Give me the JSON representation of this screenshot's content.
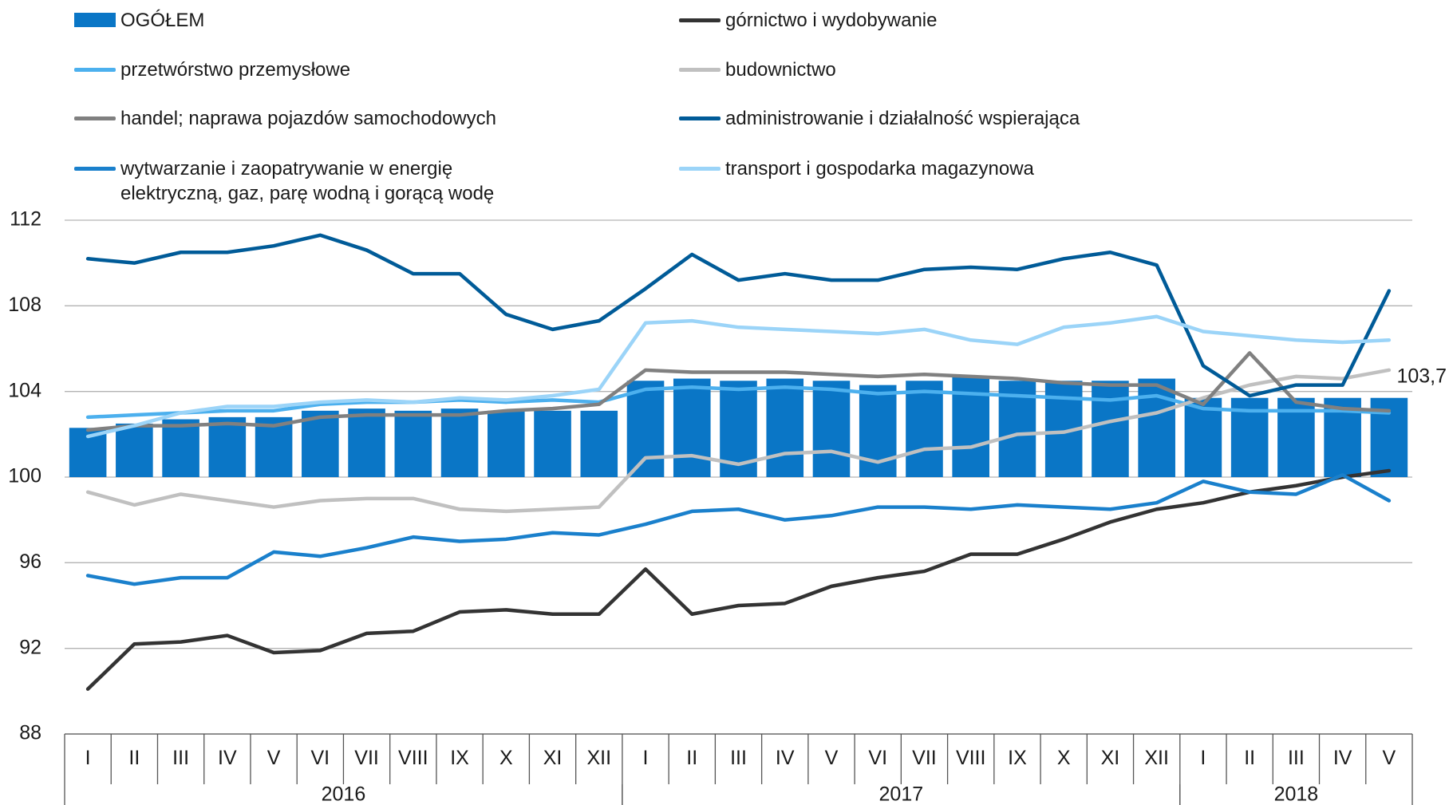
{
  "chart_data": {
    "type": "combo",
    "categories": [
      "I",
      "II",
      "III",
      "IV",
      "V",
      "VI",
      "VII",
      "VIII",
      "IX",
      "X",
      "XI",
      "XII",
      "I",
      "II",
      "III",
      "IV",
      "V",
      "VI",
      "VII",
      "VIII",
      "IX",
      "X",
      "XI",
      "XII",
      "I",
      "II",
      "III",
      "IV",
      "V"
    ],
    "groups": [
      {
        "name": "2016",
        "size": 12
      },
      {
        "name": "2017",
        "size": 12
      },
      {
        "name": "2018",
        "size": 5
      }
    ],
    "ylim": [
      88,
      112
    ],
    "yticks": [
      88,
      92,
      96,
      100,
      104,
      108,
      112
    ],
    "grid": true,
    "bar_base": 100,
    "series": [
      {
        "name": "OGÓŁEM",
        "type": "bar",
        "color": "#0a76c6",
        "values": [
          102.3,
          102.5,
          102.7,
          102.8,
          102.8,
          103.1,
          103.2,
          103.1,
          103.2,
          103.1,
          103.1,
          103.1,
          104.5,
          104.6,
          104.5,
          104.6,
          104.5,
          104.3,
          104.5,
          104.7,
          104.5,
          104.5,
          104.5,
          104.6,
          103.7,
          103.7,
          103.7,
          103.7,
          103.7
        ],
        "value_labels": [
          null,
          null,
          null,
          null,
          null,
          null,
          null,
          null,
          null,
          null,
          null,
          null,
          null,
          null,
          null,
          null,
          null,
          null,
          null,
          null,
          null,
          null,
          null,
          null,
          null,
          null,
          null,
          null,
          "103,7"
        ]
      },
      {
        "name": "górnictwo i wydobywanie",
        "type": "line",
        "color": "#333333",
        "values": [
          90.1,
          92.2,
          92.3,
          92.6,
          91.8,
          91.9,
          92.7,
          92.8,
          93.7,
          93.8,
          93.6,
          93.6,
          95.7,
          93.6,
          94.0,
          94.1,
          94.9,
          95.3,
          95.6,
          96.4,
          96.4,
          97.1,
          97.9,
          98.5,
          98.8,
          99.3,
          99.6,
          100.0,
          100.3
        ]
      },
      {
        "name": "przetwórstwo przemysłowe",
        "type": "line",
        "color": "#4cb0ee",
        "values": [
          102.8,
          102.9,
          103.0,
          103.1,
          103.1,
          103.4,
          103.5,
          103.5,
          103.6,
          103.5,
          103.6,
          103.5,
          104.1,
          104.2,
          104.1,
          104.2,
          104.1,
          103.9,
          104.0,
          103.9,
          103.8,
          103.7,
          103.6,
          103.8,
          103.2,
          103.1,
          103.1,
          103.1,
          103.0
        ]
      },
      {
        "name": "budownictwo",
        "type": "line",
        "color": "#c0c0c0",
        "values": [
          99.3,
          98.7,
          99.2,
          98.9,
          98.6,
          98.9,
          99.0,
          99.0,
          98.5,
          98.4,
          98.5,
          98.6,
          100.9,
          101.0,
          100.6,
          101.1,
          101.2,
          100.7,
          101.3,
          101.4,
          102.0,
          102.1,
          102.6,
          103.0,
          103.7,
          104.3,
          104.7,
          104.6,
          105.0
        ]
      },
      {
        "name": "handel; naprawa pojazdów samochodowych",
        "type": "line",
        "color": "#808080",
        "values": [
          102.2,
          102.4,
          102.4,
          102.5,
          102.4,
          102.8,
          102.9,
          102.9,
          102.9,
          103.1,
          103.2,
          103.4,
          105.0,
          104.9,
          104.9,
          104.9,
          104.8,
          104.7,
          104.8,
          104.7,
          104.6,
          104.4,
          104.3,
          104.3,
          103.4,
          105.8,
          103.5,
          103.2,
          103.1
        ]
      },
      {
        "name": "administrowanie i działalność wspierająca",
        "type": "line",
        "color": "#005b98",
        "values": [
          110.2,
          110.0,
          110.5,
          110.5,
          110.8,
          111.3,
          110.6,
          109.5,
          109.5,
          107.6,
          106.9,
          107.3,
          108.8,
          110.4,
          109.2,
          109.5,
          109.2,
          109.2,
          109.7,
          109.8,
          109.7,
          110.2,
          110.5,
          109.9,
          105.2,
          103.8,
          104.3,
          104.3,
          108.7
        ]
      },
      {
        "name": "wytwarzanie i zaopatrywanie w energię elektryczną, gaz, parę wodną i gorącą wodę",
        "type": "line",
        "color": "#1a80cc",
        "values": [
          95.4,
          95.0,
          95.3,
          95.3,
          96.5,
          96.3,
          96.7,
          97.2,
          97.0,
          97.1,
          97.4,
          97.3,
          97.8,
          98.4,
          98.5,
          98.0,
          98.2,
          98.6,
          98.6,
          98.5,
          98.7,
          98.6,
          98.5,
          98.8,
          99.8,
          99.3,
          99.2,
          100.1,
          98.9
        ]
      },
      {
        "name": "transport i gospodarka magazynowa",
        "type": "line",
        "color": "#9bd4f8",
        "values": [
          101.9,
          102.4,
          103.0,
          103.3,
          103.3,
          103.5,
          103.6,
          103.5,
          103.7,
          103.6,
          103.8,
          104.1,
          107.2,
          107.3,
          107.0,
          106.9,
          106.8,
          106.7,
          106.9,
          106.4,
          106.2,
          107.0,
          107.2,
          107.5,
          106.8,
          106.6,
          106.4,
          106.3,
          106.4
        ]
      }
    ]
  }
}
